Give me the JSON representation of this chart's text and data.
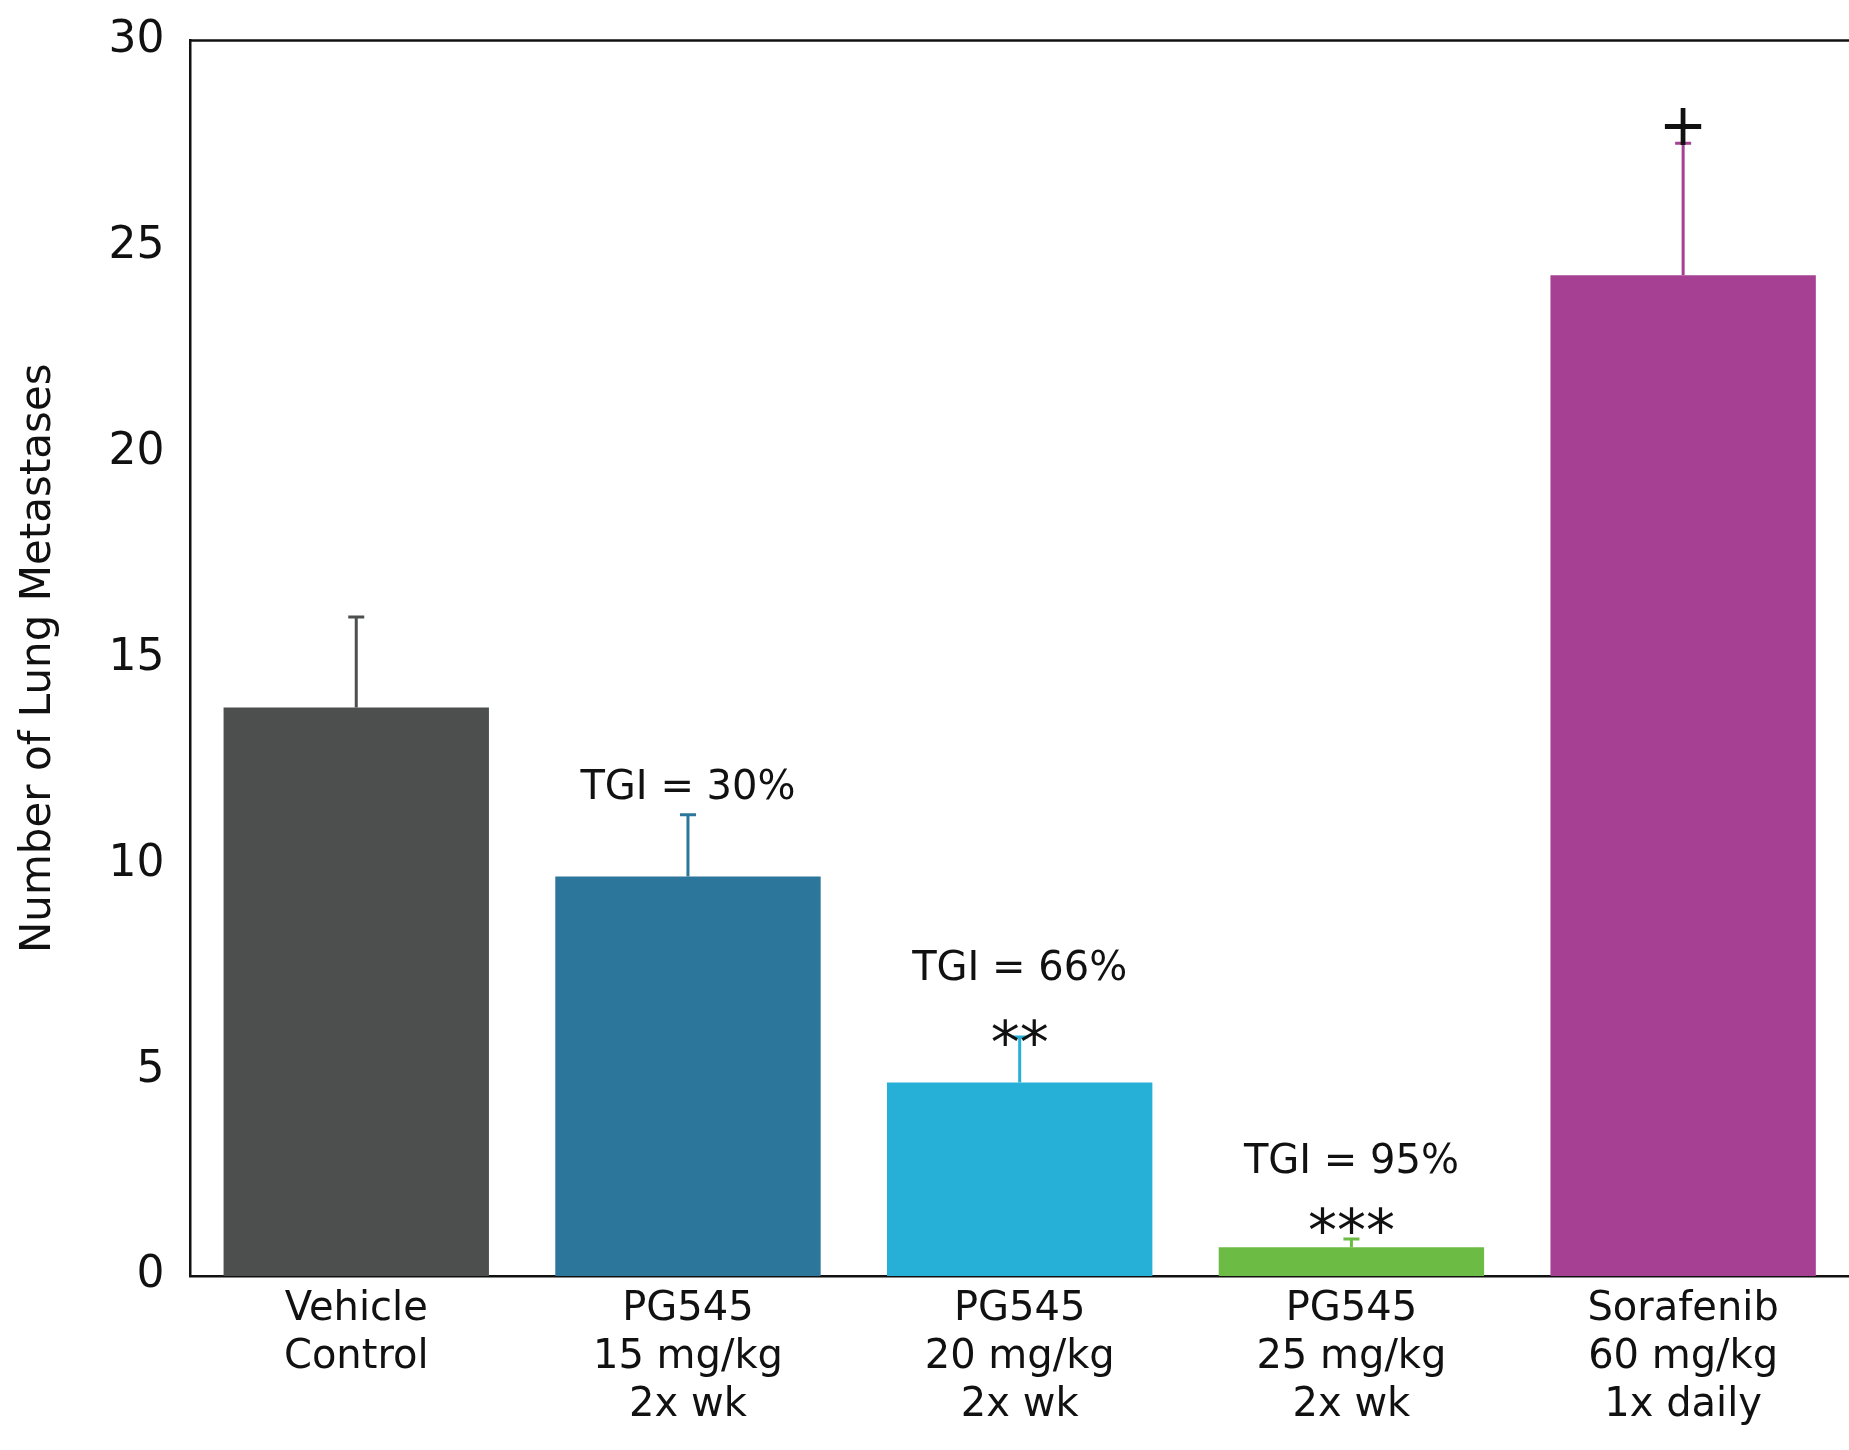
{
  "chart_data": {
    "type": "bar",
    "ylabel": "Number of Lung Metastases",
    "categories": [
      "Vehicle\nControl",
      "PG545\n15 mg/kg\n2x wk",
      "PG545\n20 mg/kg\n2x wk",
      "PG545\n25 mg/kg\n2x wk",
      "Sorafenib\n60 mg/kg\n1x daily"
    ],
    "values": [
      13.8,
      9.7,
      4.7,
      0.7,
      24.3
    ],
    "colors": [
      "#4d4f4e",
      "#2c769c",
      "#27b0d7",
      "#6cbb45",
      "#a54093"
    ],
    "errors": [
      [
        13.8,
        16.0
      ],
      [
        9.7,
        11.2
      ],
      [
        4.7,
        5.8
      ],
      [
        0.7,
        0.9
      ],
      [
        24.3,
        27.5
      ]
    ],
    "ylim": [
      0,
      30
    ],
    "yticks": [
      0,
      5,
      10,
      15,
      20,
      25,
      30
    ],
    "grid": false,
    "legend": false,
    "annotations": [
      "TGI = 30%",
      "**",
      "TGI = 66%",
      "***",
      "TGI = 95%",
      "+"
    ]
  }
}
